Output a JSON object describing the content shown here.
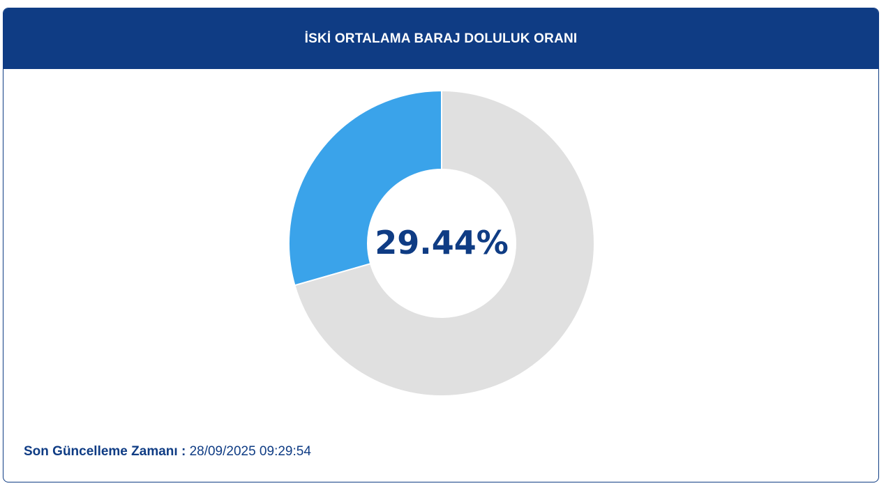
{
  "header": {
    "title": "İSKİ ORTALAMA BARAJ DOLULUK ORANI"
  },
  "chart_data": {
    "type": "pie",
    "style": "donut",
    "center_label": "29.44%",
    "slices": [
      {
        "value": 29.44,
        "color": "#3aa3ea"
      },
      {
        "value": 70.56,
        "color": "#e0e0e0"
      }
    ],
    "start_angle": "12 o'clock",
    "direction": "counter-clockwise"
  },
  "footer": {
    "label": "Son Güncelleme Zamanı :",
    "value": "28/09/2025 09:29:54"
  },
  "colors": {
    "brand": "#0f3c84",
    "filled": "#3aa3ea",
    "empty": "#e0e0e0",
    "center_text": "#0f3c84"
  }
}
